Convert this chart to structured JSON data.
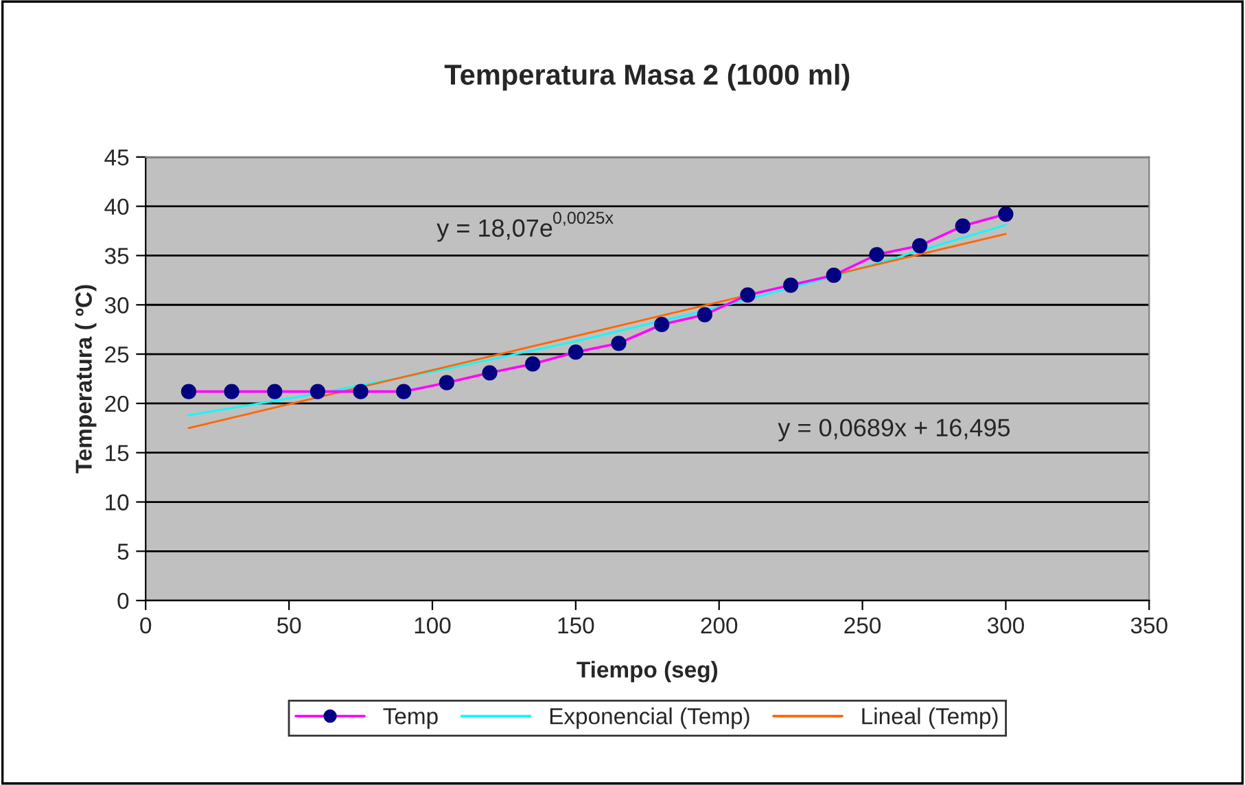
{
  "chart_data": {
    "type": "line",
    "title": "Temperatura Masa 2 (1000 ml)",
    "xlabel": "Tiempo (seg)",
    "ylabel": "Temperatura ( ºC)",
    "x": [
      15,
      30,
      45,
      60,
      75,
      90,
      105,
      120,
      135,
      150,
      165,
      180,
      195,
      210,
      225,
      240,
      255,
      270,
      285,
      300
    ],
    "series": [
      {
        "name": "Temp",
        "color": "#ff00ff",
        "marker": "circle",
        "values": [
          21.2,
          21.2,
          21.2,
          21.2,
          21.2,
          21.2,
          22.1,
          23.1,
          24,
          25.2,
          26.1,
          28,
          29,
          31,
          32,
          33,
          35.1,
          36,
          38,
          39.2
        ]
      },
      {
        "name": "Exponencial (Temp)",
        "color": "#00ffff",
        "type": "line",
        "x": [
          15,
          60,
          105,
          150,
          195,
          240,
          300
        ],
        "values": [
          18.8,
          21,
          23.5,
          26.3,
          29.4,
          32.9,
          38.1
        ]
      },
      {
        "name": "Lineal (Temp)",
        "color": "#ff6600",
        "type": "line",
        "x": [
          15,
          300
        ],
        "values": [
          17.5,
          37.2
        ]
      }
    ],
    "xlim": [
      0,
      350
    ],
    "xticks": [
      0,
      50,
      100,
      150,
      200,
      250,
      300,
      350
    ],
    "ylim": [
      0,
      45
    ],
    "yticks": [
      0,
      5,
      10,
      15,
      20,
      25,
      30,
      35,
      40,
      45
    ],
    "grid": "y",
    "legend": "bottom",
    "annotations": [
      "y = 18,07e$^{0,0025x}$",
      "y = 0,0689x + 16,495"
    ]
  }
}
